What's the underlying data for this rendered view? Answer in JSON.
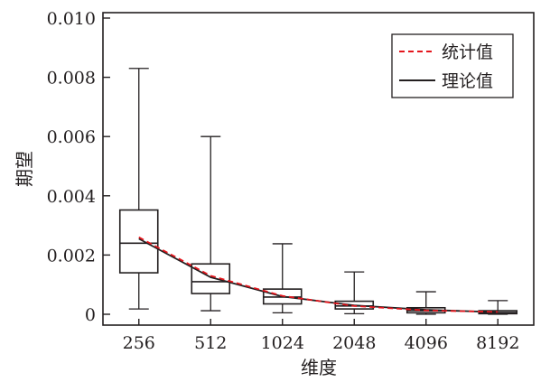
{
  "chart_data": {
    "type": "box",
    "title": "",
    "xlabel": "维度",
    "ylabel": "期望",
    "categories": [
      "256",
      "512",
      "1024",
      "2048",
      "4096",
      "8192"
    ],
    "ylim": [
      0,
      0.01
    ],
    "yticks": [
      0,
      0.002,
      0.004,
      0.006,
      0.008,
      0.01
    ],
    "ytick_labels": [
      "0",
      "0.002",
      "0.004",
      "0.006",
      "0.008",
      "0.010"
    ],
    "grid": false,
    "legend": {
      "placement": "top-right"
    },
    "boxes": [
      {
        "category": "256",
        "min": 0.00018,
        "q1": 0.0014,
        "median": 0.0024,
        "q3": 0.00352,
        "max": 0.0083
      },
      {
        "category": "512",
        "min": 0.00012,
        "q1": 0.0007,
        "median": 0.0011,
        "q3": 0.0017,
        "max": 0.006
      },
      {
        "category": "1024",
        "min": 5e-05,
        "q1": 0.00035,
        "median": 0.00058,
        "q3": 0.00085,
        "max": 0.00238
      },
      {
        "category": "2048",
        "min": 2e-05,
        "q1": 0.00018,
        "median": 0.00028,
        "q3": 0.00044,
        "max": 0.00143
      },
      {
        "category": "4096",
        "min": 0.0,
        "q1": 5e-05,
        "median": 0.00012,
        "q3": 0.00022,
        "max": 0.00076
      },
      {
        "category": "8192",
        "min": 0.0,
        "q1": 2e-05,
        "median": 6e-05,
        "q3": 0.00012,
        "max": 0.00046
      }
    ],
    "series": [
      {
        "name": "统计值",
        "style": "dashed",
        "color": "#e4161d",
        "values": [
          0.0026,
          0.0013,
          0.00062,
          0.00028,
          0.00013,
          8e-05
        ]
      },
      {
        "name": "理论值",
        "style": "solid",
        "color": "#231f20",
        "values": [
          0.00255,
          0.00125,
          0.0006,
          0.0003,
          0.00015,
          7e-05
        ]
      }
    ]
  },
  "colors": {
    "axis": "#231f20",
    "background": "#ffffff"
  }
}
